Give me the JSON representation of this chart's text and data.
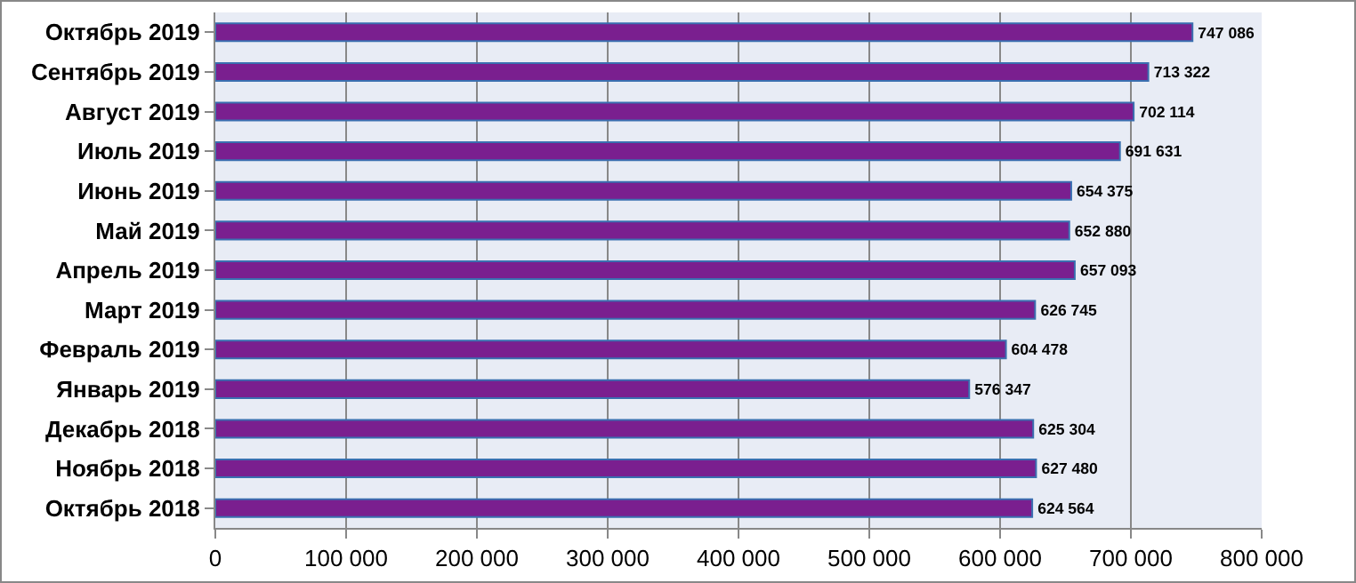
{
  "chart_data": {
    "type": "bar",
    "orientation": "horizontal",
    "categories": [
      "Октябрь 2019",
      "Сентябрь 2019",
      "Август 2019",
      "Июль 2019",
      "Июнь 2019",
      "Май 2019",
      "Апрель 2019",
      "Март 2019",
      "Февраль 2019",
      "Январь 2019",
      "Декабрь 2018",
      "Ноябрь 2018",
      "Октябрь 2018"
    ],
    "values": [
      747086,
      713322,
      702114,
      691631,
      654375,
      652880,
      657093,
      626745,
      604478,
      576347,
      625304,
      627480,
      624564
    ],
    "value_labels": [
      "747 086",
      "713 322",
      "702 114",
      "691 631",
      "654 375",
      "652 880",
      "657 093",
      "626 745",
      "604 478",
      "576 347",
      "625 304",
      "627 480",
      "624 564"
    ],
    "color": "#7a1f8f",
    "xlim": [
      0,
      800000
    ],
    "xticks": [
      0,
      {
        "value": 100000,
        "label": "100 000"
      },
      {
        "value": 200000,
        "label": "200 000"
      },
      {
        "value": 300000,
        "label": "300 000"
      },
      {
        "value": 400000,
        "label": "400 000"
      },
      {
        "value": 500000,
        "label": "500 000"
      },
      {
        "value": 600000,
        "label": "600 000"
      },
      {
        "value": 700000,
        "label": "700 000"
      },
      {
        "value": 800000,
        "label": "800 000"
      }
    ],
    "grid": "x"
  }
}
